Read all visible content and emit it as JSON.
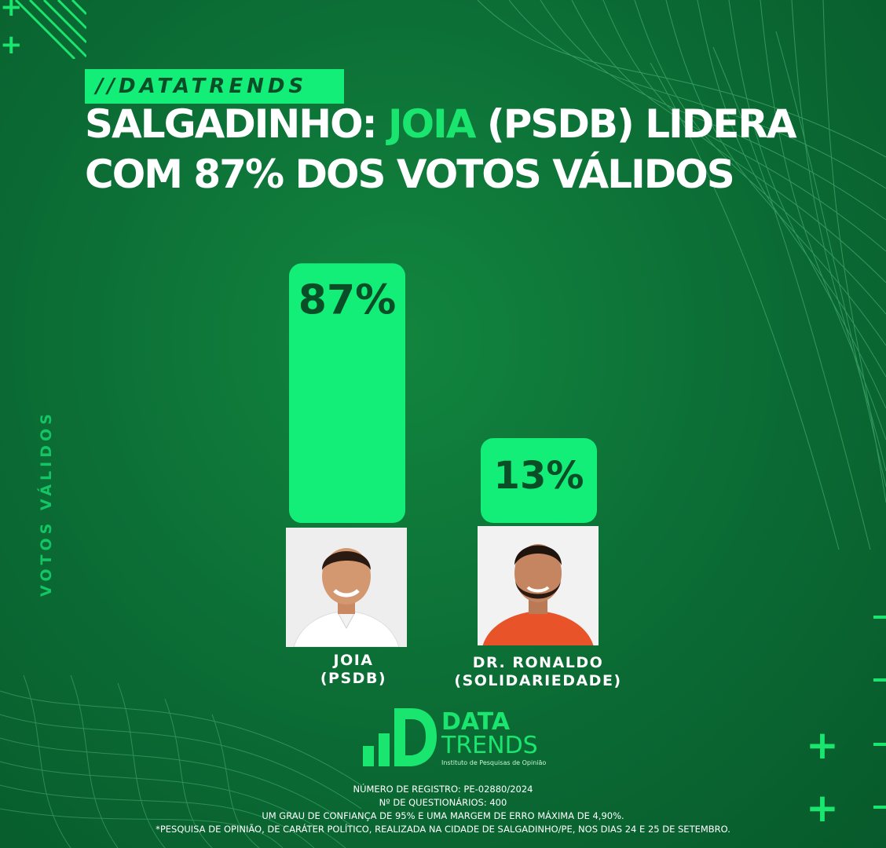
{
  "tag": "//DATATRENDS",
  "headline": {
    "line1_pre": "SALGADINHO: ",
    "line1_highlight": "JOIA",
    "line1_post": " (PSDB) LIDERA",
    "line2": "COM 87% DOS VOTOS VÁLIDOS"
  },
  "axis_label": "VOTOS VÁLIDOS",
  "candidates": [
    {
      "name": "JOIA",
      "party": "(PSDB)"
    },
    {
      "name": "DR. RONALDO",
      "party": "(SOLIDARIEDADE)"
    }
  ],
  "chart_data": {
    "type": "bar",
    "categories": [
      "JOIA (PSDB)",
      "DR. RONALDO (SOLIDARIEDADE)"
    ],
    "values": [
      87,
      13
    ],
    "value_labels": [
      "87%",
      "13%"
    ],
    "title": "SALGADINHO: JOIA (PSDB) LIDERA COM 87% DOS VOTOS VÁLIDOS",
    "xlabel": "",
    "ylabel": "VOTOS VÁLIDOS",
    "ylim": [
      0,
      100
    ],
    "grid": false,
    "bar_color": "#13ee78"
  },
  "logo": {
    "line1": "DATA",
    "line2": "TRENDS",
    "subtitle": "Instituto de Pesquisas de Opinião"
  },
  "footer": {
    "registro": "NÚMERO DE REGISTRO: PE-02880/2024",
    "questionarios": "Nº DE QUESTIONÁRIOS: 400",
    "confianca": "UM GRAU DE CONFIANÇA DE 95% E UMA MARGEM DE ERRO MÁXIMA DE 4,90%.",
    "nota": "*PESQUISA DE OPINIÃO, DE CARÁTER POLÍTICO, REALIZADA NA CIDADE DE SALGADINHO/PE, NOS DIAS 24 E 25 DE SETEMBRO."
  },
  "colors": {
    "background": "#0b6b34",
    "accent": "#13ee78",
    "dark_text": "#0a4e27"
  }
}
